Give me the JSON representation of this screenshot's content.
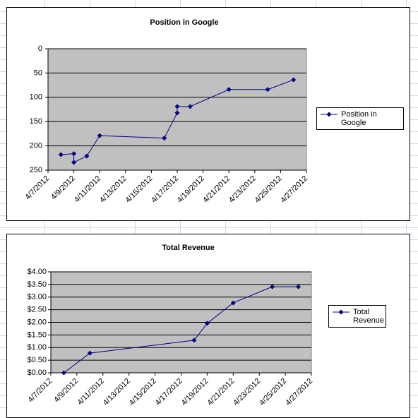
{
  "chart_data": [
    {
      "type": "line",
      "title": "Position in Google",
      "x": [
        "4/8/2012",
        "4/9/2012",
        "4/9/2012",
        "4/10/2012",
        "4/11/2012",
        "4/16/2012",
        "4/17/2012",
        "4/17/2012",
        "4/18/2012",
        "4/21/2012",
        "4/24/2012",
        "4/26/2012"
      ],
      "series": [
        {
          "name": "Position in Google",
          "color": "#000080",
          "values": [
            218,
            216,
            234,
            221,
            179,
            184,
            132,
            119,
            119,
            84,
            84,
            64
          ]
        }
      ],
      "xlim": [
        "4/7/2012",
        "4/27/2012"
      ],
      "xticks": [
        "4/7/2012",
        "4/9/2012",
        "4/11/2012",
        "4/13/2012",
        "4/15/2012",
        "4/17/2012",
        "4/19/2012",
        "4/21/2012",
        "4/23/2012",
        "4/25/2012",
        "4/27/2012"
      ],
      "ylim": [
        0,
        250
      ],
      "yticks": [
        0,
        50,
        100,
        150,
        200,
        250
      ],
      "y_reversed": true,
      "grid": true,
      "plot_color": "#c0c0c0",
      "legend": "right"
    },
    {
      "type": "line",
      "title": "Total Revenue",
      "x": [
        "4/8/2012",
        "4/10/2012",
        "4/18/2012",
        "4/19/2012",
        "4/21/2012",
        "4/24/2012",
        "4/26/2012"
      ],
      "series": [
        {
          "name": "Total Revenue",
          "color": "#000080",
          "values": [
            0,
            0.78,
            1.29,
            1.96,
            2.77,
            3.41,
            3.41
          ]
        }
      ],
      "xlim": [
        "4/7/2012",
        "4/27/2012"
      ],
      "xticks": [
        "4/7/2012",
        "4/9/2012",
        "4/11/2012",
        "4/13/2012",
        "4/15/2012",
        "4/17/2012",
        "4/19/2012",
        "4/21/2012",
        "4/23/2012",
        "4/25/2012",
        "4/27/2012"
      ],
      "ylim": [
        0,
        4
      ],
      "yticks": [
        {
          "value": 0,
          "label": "$0.00"
        },
        {
          "value": 0.5,
          "label": "$0.50"
        },
        {
          "value": 1,
          "label": "$1.00"
        },
        {
          "value": 1.5,
          "label": "$1.50"
        },
        {
          "value": 2,
          "label": "$2.00"
        },
        {
          "value": 2.5,
          "label": "$2.50"
        },
        {
          "value": 3,
          "label": "$3.00"
        },
        {
          "value": 3.5,
          "label": "$3.50"
        },
        {
          "value": 4,
          "label": "$4.00"
        }
      ],
      "y_reversed": false,
      "grid": true,
      "plot_color": "#c0c0c0",
      "legend": "right"
    }
  ]
}
